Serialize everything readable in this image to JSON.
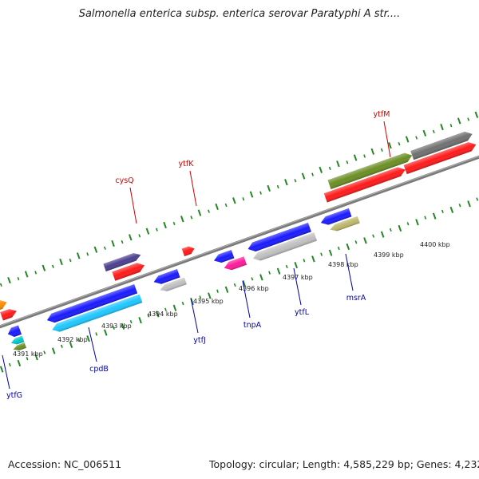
{
  "title": "Salmonella enterica subsp. enterica serovar Paratyphi A str....",
  "footer": {
    "accession": "Accession: NC_006511",
    "summary": "Topology: circular; Length: 4,585,229 bp; Genes: 4,232"
  },
  "colors": {
    "forward_label": "#cc0000",
    "reverse_label": "#0000aa",
    "backbone": "#808080",
    "tick": "#228822"
  },
  "scale_labels": [
    {
      "text": "4391 kbp"
    },
    {
      "text": "4392 kbp"
    },
    {
      "text": "4393 kbp"
    },
    {
      "text": "4394 kbp"
    },
    {
      "text": "4395 kbp"
    },
    {
      "text": "4396 kbp"
    },
    {
      "text": "4397 kbp"
    },
    {
      "text": "4398 kbp"
    },
    {
      "text": "4399 kbp"
    },
    {
      "text": "4400 kbp"
    }
  ],
  "forward_labels": [
    {
      "text": "cysQ"
    },
    {
      "text": "ytfK"
    },
    {
      "text": "ytfM"
    }
  ],
  "reverse_labels": [
    {
      "text": "ytfG"
    },
    {
      "text": "cpdB"
    },
    {
      "text": "ytfJ"
    },
    {
      "text": "tnpA"
    },
    {
      "text": "ytfL"
    },
    {
      "text": "msrA"
    }
  ],
  "features": [
    {
      "strand": "+",
      "color": "#ff8c00",
      "name": "orange-cds"
    },
    {
      "strand": "+",
      "color": "#ff1a1a",
      "name": "red-cds-a"
    },
    {
      "strand": "+",
      "color": "#4b3f8f",
      "name": "cysq-cog"
    },
    {
      "strand": "+",
      "color": "#ff1a1a",
      "name": "cysq-cds"
    },
    {
      "strand": "+",
      "color": "#ff1a1a",
      "name": "ytfk-cds"
    },
    {
      "strand": "+",
      "color": "#6b8e23",
      "name": "ytfm-cog"
    },
    {
      "strand": "+",
      "color": "#707070",
      "name": "grey-cog"
    },
    {
      "strand": "+",
      "color": "#ff1a1a",
      "name": "ytfm-cds"
    },
    {
      "strand": "+",
      "color": "#ff1a1a",
      "name": "red-cds-b"
    },
    {
      "strand": "-",
      "color": "#1a1aff",
      "name": "ytfg-cds"
    },
    {
      "strand": "-",
      "color": "#00c8c8",
      "name": "ytfg-cog"
    },
    {
      "strand": "-",
      "color": "#6b8e23",
      "name": "olive-cog"
    },
    {
      "strand": "-",
      "color": "#1a1aff",
      "name": "cpdb-cds"
    },
    {
      "strand": "-",
      "color": "#1ec8ff",
      "name": "cpdb-cog"
    },
    {
      "strand": "-",
      "color": "#1a1aff",
      "name": "ytfj-cds"
    },
    {
      "strand": "-",
      "color": "#c0c0c0",
      "name": "ytfj-cog"
    },
    {
      "strand": "-",
      "color": "#1a1aff",
      "name": "tnpa-cds"
    },
    {
      "strand": "-",
      "color": "#ff1a9c",
      "name": "tnpa-cog"
    },
    {
      "strand": "-",
      "color": "#1a1aff",
      "name": "ytfl-cds"
    },
    {
      "strand": "-",
      "color": "#c0c0c0",
      "name": "ytfl-cog"
    },
    {
      "strand": "-",
      "color": "#1a1aff",
      "name": "msra-cds"
    },
    {
      "strand": "-",
      "color": "#bdb76b",
      "name": "msra-cog"
    }
  ]
}
